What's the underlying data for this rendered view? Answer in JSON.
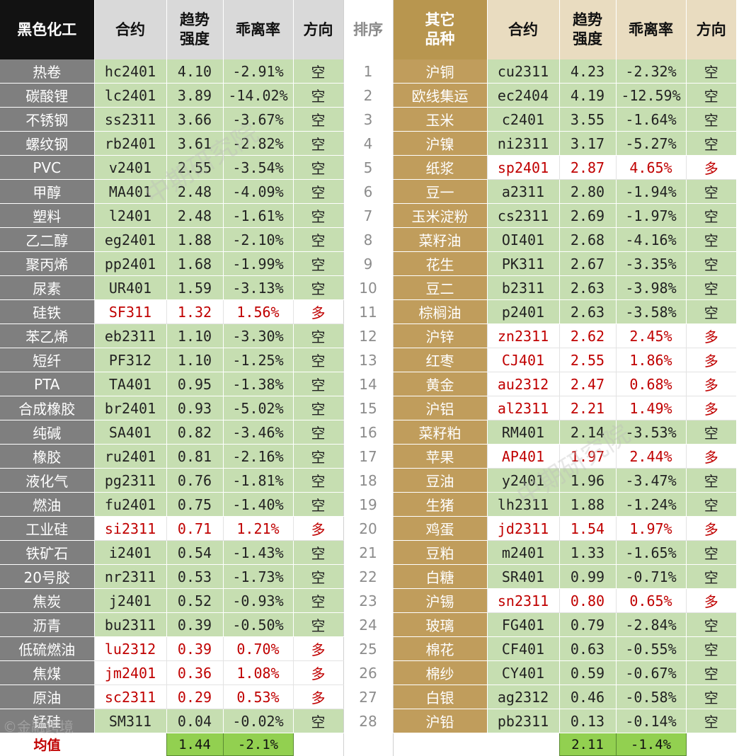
{
  "chart_data": {
    "type": "table",
    "header": {
      "left_group": "黑色化工",
      "contract": "合约",
      "trend": "趋势强度",
      "deviation": "乖离率",
      "direction": "方向",
      "rank": "排序",
      "right_group": "其它品种"
    },
    "rows": [
      {
        "rank": "1",
        "left": {
          "name": "热卷",
          "contract": "hc2401",
          "trend": "4.10",
          "dev": "-2.91%",
          "dir": "空"
        },
        "right": {
          "name": "沪铜",
          "contract": "cu2311",
          "trend": "4.23",
          "dev": "-2.32%",
          "dir": "空"
        }
      },
      {
        "rank": "2",
        "left": {
          "name": "碳酸锂",
          "contract": "lc2401",
          "trend": "3.89",
          "dev": "-14.02%",
          "dir": "空"
        },
        "right": {
          "name": "欧线集运",
          "contract": "ec2404",
          "trend": "4.19",
          "dev": "-12.59%",
          "dir": "空"
        }
      },
      {
        "rank": "3",
        "left": {
          "name": "不锈钢",
          "contract": "ss2311",
          "trend": "3.66",
          "dev": "-3.67%",
          "dir": "空"
        },
        "right": {
          "name": "玉米",
          "contract": "c2401",
          "trend": "3.55",
          "dev": "-1.64%",
          "dir": "空"
        }
      },
      {
        "rank": "4",
        "left": {
          "name": "螺纹钢",
          "contract": "rb2401",
          "trend": "3.61",
          "dev": "-2.82%",
          "dir": "空"
        },
        "right": {
          "name": "沪镍",
          "contract": "ni2311",
          "trend": "3.17",
          "dev": "-5.27%",
          "dir": "空"
        }
      },
      {
        "rank": "5",
        "left": {
          "name": "PVC",
          "contract": "v2401",
          "trend": "2.55",
          "dev": "-3.54%",
          "dir": "空"
        },
        "right": {
          "name": "纸浆",
          "contract": "sp2401",
          "trend": "2.87",
          "dev": "4.65%",
          "dir": "多"
        }
      },
      {
        "rank": "6",
        "left": {
          "name": "甲醇",
          "contract": "MA401",
          "trend": "2.48",
          "dev": "-4.09%",
          "dir": "空"
        },
        "right": {
          "name": "豆一",
          "contract": "a2311",
          "trend": "2.80",
          "dev": "-1.94%",
          "dir": "空"
        }
      },
      {
        "rank": "7",
        "left": {
          "name": "塑料",
          "contract": "l2401",
          "trend": "2.48",
          "dev": "-1.61%",
          "dir": "空"
        },
        "right": {
          "name": "玉米淀粉",
          "contract": "cs2311",
          "trend": "2.69",
          "dev": "-1.97%",
          "dir": "空"
        }
      },
      {
        "rank": "8",
        "left": {
          "name": "乙二醇",
          "contract": "eg2401",
          "trend": "1.88",
          "dev": "-2.10%",
          "dir": "空"
        },
        "right": {
          "name": "菜籽油",
          "contract": "OI401",
          "trend": "2.68",
          "dev": "-4.16%",
          "dir": "空"
        }
      },
      {
        "rank": "9",
        "left": {
          "name": "聚丙烯",
          "contract": "pp2401",
          "trend": "1.68",
          "dev": "-1.99%",
          "dir": "空"
        },
        "right": {
          "name": "花生",
          "contract": "PK311",
          "trend": "2.67",
          "dev": "-3.35%",
          "dir": "空"
        }
      },
      {
        "rank": "10",
        "left": {
          "name": "尿素",
          "contract": "UR401",
          "trend": "1.59",
          "dev": "-3.13%",
          "dir": "空"
        },
        "right": {
          "name": "豆二",
          "contract": "b2311",
          "trend": "2.63",
          "dev": "-3.98%",
          "dir": "空"
        }
      },
      {
        "rank": "11",
        "left": {
          "name": "硅铁",
          "contract": "SF311",
          "trend": "1.32",
          "dev": "1.56%",
          "dir": "多"
        },
        "right": {
          "name": "棕榈油",
          "contract": "p2401",
          "trend": "2.63",
          "dev": "-3.58%",
          "dir": "空"
        }
      },
      {
        "rank": "12",
        "left": {
          "name": "苯乙烯",
          "contract": "eb2311",
          "trend": "1.10",
          "dev": "-3.30%",
          "dir": "空"
        },
        "right": {
          "name": "沪锌",
          "contract": "zn2311",
          "trend": "2.62",
          "dev": "2.45%",
          "dir": "多"
        }
      },
      {
        "rank": "13",
        "left": {
          "name": "短纤",
          "contract": "PF312",
          "trend": "1.10",
          "dev": "-1.25%",
          "dir": "空"
        },
        "right": {
          "name": "红枣",
          "contract": "CJ401",
          "trend": "2.55",
          "dev": "1.86%",
          "dir": "多"
        }
      },
      {
        "rank": "14",
        "left": {
          "name": "PTA",
          "contract": "TA401",
          "trend": "0.95",
          "dev": "-1.38%",
          "dir": "空"
        },
        "right": {
          "name": "黄金",
          "contract": "au2312",
          "trend": "2.47",
          "dev": "0.68%",
          "dir": "多"
        }
      },
      {
        "rank": "15",
        "left": {
          "name": "合成橡胶",
          "contract": "br2401",
          "trend": "0.93",
          "dev": "-5.02%",
          "dir": "空"
        },
        "right": {
          "name": "沪铝",
          "contract": "al2311",
          "trend": "2.21",
          "dev": "1.49%",
          "dir": "多"
        }
      },
      {
        "rank": "16",
        "left": {
          "name": "纯碱",
          "contract": "SA401",
          "trend": "0.82",
          "dev": "-3.46%",
          "dir": "空"
        },
        "right": {
          "name": "菜籽粕",
          "contract": "RM401",
          "trend": "2.14",
          "dev": "-3.53%",
          "dir": "空"
        }
      },
      {
        "rank": "17",
        "left": {
          "name": "橡胶",
          "contract": "ru2401",
          "trend": "0.81",
          "dev": "-2.16%",
          "dir": "空"
        },
        "right": {
          "name": "苹果",
          "contract": "AP401",
          "trend": "1.97",
          "dev": "2.44%",
          "dir": "多"
        }
      },
      {
        "rank": "18",
        "left": {
          "name": "液化气",
          "contract": "pg2311",
          "trend": "0.76",
          "dev": "-1.81%",
          "dir": "空"
        },
        "right": {
          "name": "豆油",
          "contract": "y2401",
          "trend": "1.96",
          "dev": "-3.47%",
          "dir": "空"
        }
      },
      {
        "rank": "19",
        "left": {
          "name": "燃油",
          "contract": "fu2401",
          "trend": "0.75",
          "dev": "-1.40%",
          "dir": "空"
        },
        "right": {
          "name": "生猪",
          "contract": "lh2311",
          "trend": "1.88",
          "dev": "-1.24%",
          "dir": "空"
        }
      },
      {
        "rank": "20",
        "left": {
          "name": "工业硅",
          "contract": "si2311",
          "trend": "0.71",
          "dev": "1.21%",
          "dir": "多"
        },
        "right": {
          "name": "鸡蛋",
          "contract": "jd2311",
          "trend": "1.54",
          "dev": "1.97%",
          "dir": "多"
        }
      },
      {
        "rank": "21",
        "left": {
          "name": "铁矿石",
          "contract": "i2401",
          "trend": "0.54",
          "dev": "-1.43%",
          "dir": "空"
        },
        "right": {
          "name": "豆粕",
          "contract": "m2401",
          "trend": "1.33",
          "dev": "-1.65%",
          "dir": "空"
        }
      },
      {
        "rank": "22",
        "left": {
          "name": "20号胶",
          "contract": "nr2311",
          "trend": "0.53",
          "dev": "-1.73%",
          "dir": "空"
        },
        "right": {
          "name": "白糖",
          "contract": "SR401",
          "trend": "0.99",
          "dev": "-0.71%",
          "dir": "空"
        }
      },
      {
        "rank": "23",
        "left": {
          "name": "焦炭",
          "contract": "j2401",
          "trend": "0.52",
          "dev": "-0.93%",
          "dir": "空"
        },
        "right": {
          "name": "沪锡",
          "contract": "sn2311",
          "trend": "0.80",
          "dev": "0.65%",
          "dir": "多"
        }
      },
      {
        "rank": "24",
        "left": {
          "name": "沥青",
          "contract": "bu2311",
          "trend": "0.39",
          "dev": "-0.50%",
          "dir": "空"
        },
        "right": {
          "name": "玻璃",
          "contract": "FG401",
          "trend": "0.79",
          "dev": "-2.84%",
          "dir": "空"
        }
      },
      {
        "rank": "25",
        "left": {
          "name": "低硫燃油",
          "contract": "lu2312",
          "trend": "0.39",
          "dev": "0.70%",
          "dir": "多"
        },
        "right": {
          "name": "棉花",
          "contract": "CF401",
          "trend": "0.63",
          "dev": "-0.55%",
          "dir": "空"
        }
      },
      {
        "rank": "26",
        "left": {
          "name": "焦煤",
          "contract": "jm2401",
          "trend": "0.36",
          "dev": "1.08%",
          "dir": "多"
        },
        "right": {
          "name": "棉纱",
          "contract": "CY401",
          "trend": "0.59",
          "dev": "-0.67%",
          "dir": "空"
        }
      },
      {
        "rank": "27",
        "left": {
          "name": "原油",
          "contract": "sc2311",
          "trend": "0.29",
          "dev": "0.53%",
          "dir": "多"
        },
        "right": {
          "name": "白银",
          "contract": "ag2312",
          "trend": "0.46",
          "dev": "-0.58%",
          "dir": "空"
        }
      },
      {
        "rank": "28",
        "left": {
          "name": "锰硅",
          "contract": "SM311",
          "trend": "0.04",
          "dev": "-0.02%",
          "dir": "空"
        },
        "right": {
          "name": "沪铅",
          "contract": "pb2311",
          "trend": "0.13",
          "dev": "-0.14%",
          "dir": "空"
        }
      }
    ],
    "average": {
      "label": "均值",
      "left_trend": "1.44",
      "left_dev": "-2.1%",
      "right_trend": "2.11",
      "right_dev": "-1.4%"
    }
  },
  "watermark": {
    "text": "中期研究院",
    "footer_logo_text": "©金融跨境",
    "color": "#b9b9b9"
  },
  "colors": {
    "long": "#c00000",
    "short_fill": "#c6deb1",
    "avg_fill": "#92d050",
    "left_name_fill": "#7f7f7f",
    "right_name_fill": "#c09d5c"
  }
}
